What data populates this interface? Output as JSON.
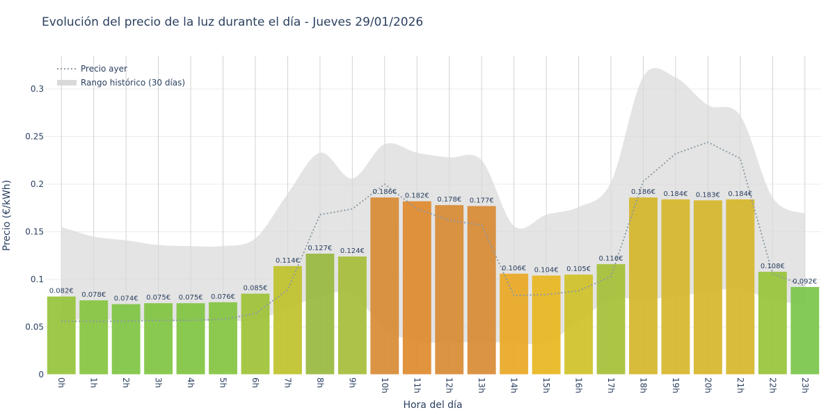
{
  "chart_data": {
    "type": "bar",
    "title": "Evolución del precio de la luz durante el día - Jueves 29/01/2026",
    "xlabel": "Hora del día",
    "ylabel": "Precio (€/kWh)",
    "ylim": [
      0,
      0.335
    ],
    "yticks": [
      0,
      0.05,
      0.1,
      0.15,
      0.2,
      0.25,
      0.3
    ],
    "ytick_labels": [
      "0",
      "0.05",
      "0.1",
      "0.15",
      "0.2",
      "0.25",
      "0.3"
    ],
    "categories": [
      "0h",
      "1h",
      "2h",
      "3h",
      "4h",
      "5h",
      "6h",
      "7h",
      "8h",
      "9h",
      "10h",
      "11h",
      "12h",
      "13h",
      "14h",
      "15h",
      "16h",
      "17h",
      "18h",
      "19h",
      "20h",
      "21h",
      "22h",
      "23h"
    ],
    "values": [
      0.082,
      0.078,
      0.074,
      0.075,
      0.075,
      0.076,
      0.085,
      0.114,
      0.127,
      0.124,
      0.186,
      0.182,
      0.178,
      0.177,
      0.106,
      0.104,
      0.105,
      0.116,
      0.186,
      0.184,
      0.183,
      0.184,
      0.108,
      0.092
    ],
    "value_labels": [
      "0.082€",
      "0.078€",
      "0.074€",
      "0.075€",
      "0.075€",
      "0.076€",
      "0.085€",
      "0.114€",
      "0.127€",
      "0.124€",
      "0.186€",
      "0.182€",
      "0.178€",
      "0.177€",
      "0.106€",
      "0.104€",
      "0.105€",
      "0.116€",
      "0.186€",
      "0.184€",
      "0.183€",
      "0.184€",
      "0.108€",
      "0.092€"
    ],
    "bar_colors": [
      "#96c33a",
      "#86c43f",
      "#7ec442",
      "#80c441",
      "#80c441",
      "#84c440",
      "#9ec236",
      "#bfc12a",
      "#98b93e",
      "#a6bd38",
      "#d88a34",
      "#e08a2e",
      "#d88a34",
      "#d88a34",
      "#e9a825",
      "#e8b621",
      "#cfc127",
      "#a6c036",
      "#d4b52a",
      "#d6b62a",
      "#d6b62a",
      "#d6b62a",
      "#98c33a",
      "#79c64a"
    ],
    "series": [
      {
        "name": "Precio ayer",
        "type": "line",
        "style": "dotted",
        "color": "#8c9aa3",
        "values": [
          0.056,
          0.056,
          0.056,
          0.057,
          0.057,
          0.058,
          0.064,
          0.089,
          0.168,
          0.174,
          0.2,
          0.174,
          0.162,
          0.157,
          0.083,
          0.084,
          0.088,
          0.103,
          0.203,
          0.232,
          0.244,
          0.227,
          0.106,
          0.093
        ]
      },
      {
        "name": "Rango histórico (30 días)",
        "type": "band",
        "color": "#d9d9d9",
        "lower": [
          0.057,
          0.058,
          0.057,
          0.056,
          0.056,
          0.057,
          0.057,
          0.07,
          0.082,
          0.085,
          0.048,
          0.035,
          0.034,
          0.034,
          0.034,
          0.033,
          0.056,
          0.079,
          0.079,
          0.082,
          0.087,
          0.09,
          0.078,
          0.074
        ],
        "upper": [
          0.155,
          0.145,
          0.141,
          0.136,
          0.135,
          0.135,
          0.143,
          0.19,
          0.233,
          0.206,
          0.242,
          0.233,
          0.228,
          0.225,
          0.156,
          0.168,
          0.176,
          0.202,
          0.313,
          0.312,
          0.283,
          0.272,
          0.186,
          0.169
        ]
      }
    ],
    "legend_position": "top-left",
    "grid": true
  }
}
